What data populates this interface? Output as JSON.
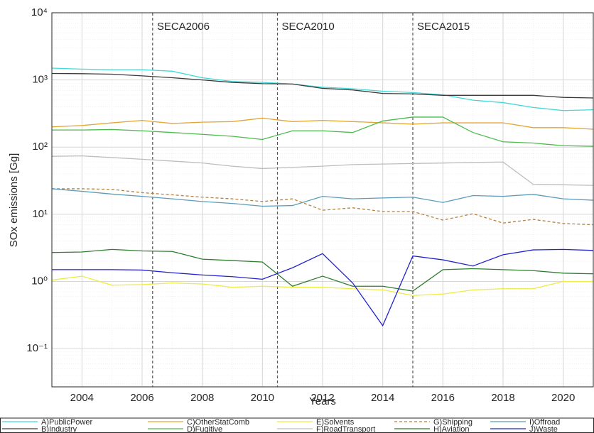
{
  "chart_data": {
    "type": "line",
    "y_label": "SOx emissions [Gg]",
    "x_label": "Years",
    "x": [
      2003,
      2004,
      2005,
      2006,
      2007,
      2008,
      2009,
      2010,
      2011,
      2012,
      2013,
      2014,
      2015,
      2016,
      2017,
      2018,
      2019,
      2020,
      2021
    ],
    "xlim": [
      2003,
      2021
    ],
    "xticks": [
      2004,
      2006,
      2008,
      2010,
      2012,
      2014,
      2016,
      2018,
      2020
    ],
    "ylim": [
      0.027,
      10000
    ],
    "log_y": true,
    "grid": true,
    "yticks": [
      {
        "value": 10000,
        "label": "10⁴"
      },
      {
        "value": 1000,
        "label": "10³"
      },
      {
        "value": 100,
        "label": "10²"
      },
      {
        "value": 10,
        "label": "10¹"
      },
      {
        "value": 1,
        "label": "10⁰"
      },
      {
        "value": 0.1,
        "label": "10⁻¹"
      }
    ],
    "annotations": [
      {
        "text": "SECA2006",
        "x": 2006.35
      },
      {
        "text": "SECA2010",
        "x": 2010.5
      },
      {
        "text": "SECA2015",
        "x": 2015.0
      }
    ],
    "legend": "bottom",
    "series": [
      {
        "name": "A)PublicPower",
        "color": "#3fd9d9",
        "values": [
          1500,
          1450,
          1420,
          1420,
          1350,
          1080,
          950,
          920,
          870,
          780,
          740,
          680,
          650,
          600,
          500,
          460,
          390,
          350,
          360
        ]
      },
      {
        "name": "B)Industry",
        "color": "#3a3a3a",
        "values": [
          1250,
          1240,
          1220,
          1150,
          1080,
          1000,
          920,
          880,
          870,
          750,
          710,
          630,
          620,
          590,
          590,
          590,
          590,
          550,
          540
        ]
      },
      {
        "name": "C)OtherStatComb",
        "color": "#e3a631",
        "values": [
          200,
          210,
          230,
          250,
          225,
          235,
          240,
          270,
          240,
          250,
          240,
          230,
          220,
          230,
          230,
          230,
          195,
          195,
          185
        ]
      },
      {
        "name": "D)Fugitive",
        "color": "#4cbb4c",
        "values": [
          180,
          180,
          183,
          175,
          165,
          155,
          145,
          130,
          175,
          175,
          165,
          245,
          280,
          280,
          165,
          120,
          115,
          105,
          103
        ]
      },
      {
        "name": "E)Solvents",
        "color": "#eded44",
        "values": [
          1.05,
          1.2,
          0.88,
          0.9,
          0.95,
          0.92,
          0.82,
          0.85,
          0.82,
          0.82,
          0.78,
          0.75,
          0.62,
          0.65,
          0.75,
          0.78,
          0.78,
          1.0,
          1.0
        ]
      },
      {
        "name": "F)RoadTransport",
        "color": "#bdbdbd",
        "values": [
          73,
          74,
          70,
          66,
          62,
          58,
          52,
          48,
          50,
          52,
          55,
          56,
          57,
          58,
          59,
          60,
          28,
          27.5,
          27
        ]
      },
      {
        "name": "G)Shipping",
        "color": "#b5813f",
        "dashed": true,
        "values": [
          24,
          24,
          23.5,
          21,
          19.5,
          18,
          17,
          15.5,
          17,
          11.5,
          12.5,
          11,
          11,
          8.2,
          10.2,
          7.4,
          8.4,
          7.3,
          7
        ]
      },
      {
        "name": "H)Aviation",
        "color": "#2f7d2f",
        "values": [
          2.7,
          2.75,
          3.0,
          2.85,
          2.8,
          2.15,
          2.05,
          1.95,
          0.85,
          1.2,
          0.85,
          0.85,
          0.72,
          1.5,
          1.55,
          1.5,
          1.45,
          1.33,
          1.3
        ]
      },
      {
        "name": "I)Offroad",
        "color": "#5c9cba",
        "values": [
          24,
          22,
          20,
          18.5,
          17,
          15.5,
          14.5,
          13.2,
          13.5,
          18.5,
          17,
          17.5,
          18,
          15,
          19,
          18.5,
          19.8,
          17,
          16.2
        ]
      },
      {
        "name": "J)Waste",
        "color": "#2424cc",
        "values": [
          1.5,
          1.5,
          1.5,
          1.48,
          1.35,
          1.25,
          1.18,
          1.08,
          1.6,
          2.6,
          0.95,
          0.22,
          2.4,
          2.1,
          1.7,
          2.5,
          2.95,
          3.0,
          2.9
        ]
      }
    ]
  }
}
